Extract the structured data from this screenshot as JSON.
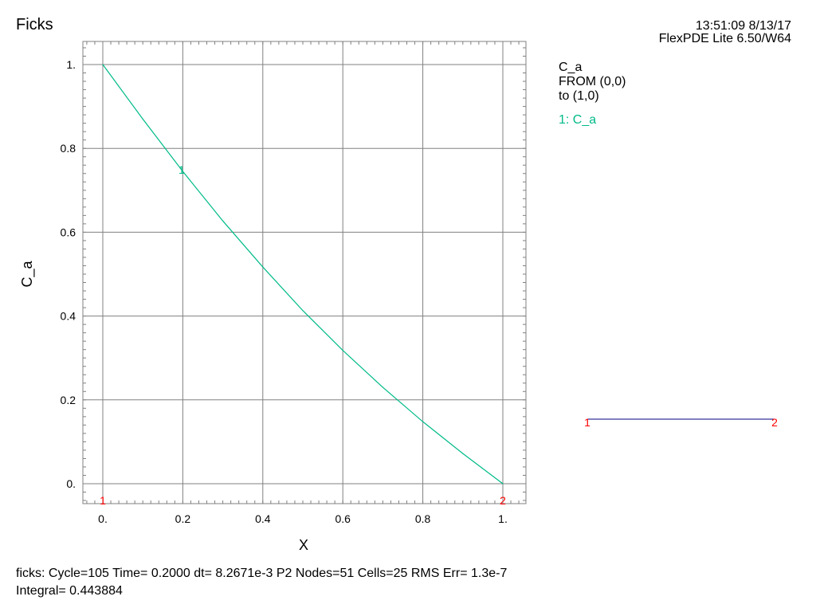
{
  "header": {
    "title": "Ficks",
    "timestamp": "13:51:09 8/13/17",
    "version": "FlexPDE Lite 6.50/W64"
  },
  "legend": {
    "variable": "C_a",
    "from": "FROM (0,0)",
    "to": "to (1,0)",
    "entry": "1: C_a",
    "entry_color": "#00bb88"
  },
  "footer": {
    "line1": "ficks:  Cycle=105  Time= 0.2000  dt= 8.2671e-3  P2  Nodes=51 Cells=25 RMS Err= 1.3e-7",
    "line2": "Integral=  0.443884"
  },
  "path_marker": {
    "start": "1",
    "end": "2",
    "line_color": "#000080",
    "marker_color": "#ff0000"
  },
  "chart_data": {
    "type": "line",
    "xlabel": "X",
    "ylabel": "C_a",
    "xlim": [
      0,
      1
    ],
    "ylim": [
      0,
      1
    ],
    "x_ticks": [
      {
        "value": 0,
        "label": "0."
      },
      {
        "value": 0.2,
        "label": "0.2"
      },
      {
        "value": 0.4,
        "label": "0.4"
      },
      {
        "value": 0.6,
        "label": "0.6"
      },
      {
        "value": 0.8,
        "label": "0.8"
      },
      {
        "value": 1,
        "label": "1."
      }
    ],
    "y_ticks": [
      {
        "value": 0,
        "label": "0."
      },
      {
        "value": 0.2,
        "label": "0.2"
      },
      {
        "value": 0.4,
        "label": "0.4"
      },
      {
        "value": 0.6,
        "label": "0.6"
      },
      {
        "value": 0.8,
        "label": "0.8"
      },
      {
        "value": 1,
        "label": "1."
      }
    ],
    "grid": true,
    "series": [
      {
        "name": "C_a",
        "color": "#00bb88",
        "x": [
          0,
          0.1,
          0.2,
          0.3,
          0.4,
          0.5,
          0.6,
          0.7,
          0.8,
          0.9,
          1.0
        ],
        "y": [
          1.0,
          0.87,
          0.745,
          0.627,
          0.517,
          0.413,
          0.318,
          0.23,
          0.148,
          0.072,
          0.0
        ]
      }
    ],
    "curve_label": {
      "text": "1",
      "x": 0.197
    },
    "endpoint_labels": [
      {
        "text": "1",
        "x": 0
      },
      {
        "text": "2",
        "x": 1
      }
    ]
  }
}
